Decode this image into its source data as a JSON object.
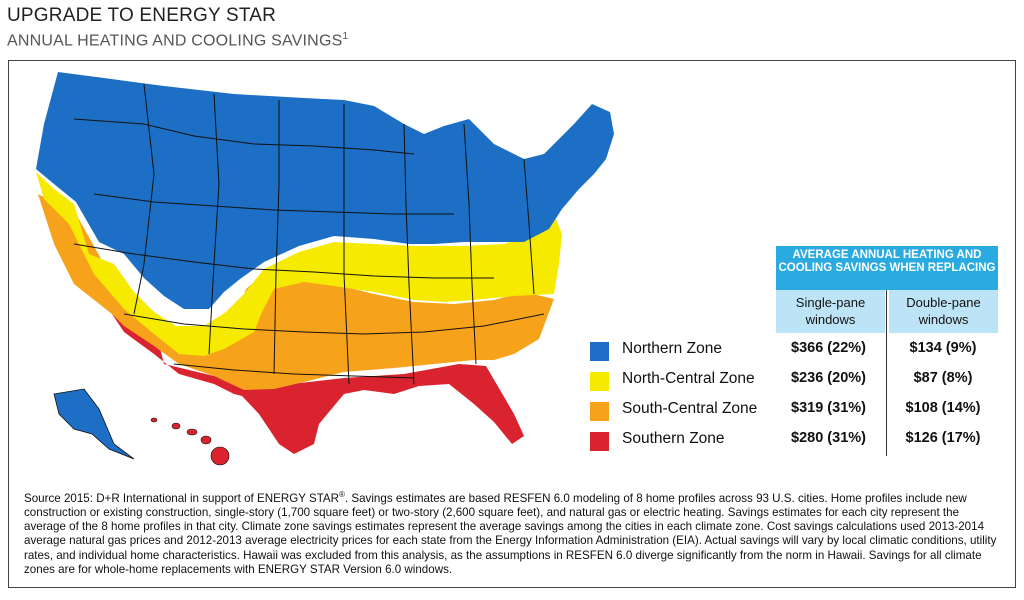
{
  "header": {
    "title": "UPGRADE TO ENERGY STAR",
    "subtitle": "ANNUAL HEATING AND COOLING SAVINGS",
    "subtitle_footnote": "1"
  },
  "table": {
    "heading": "AVERAGE ANNUAL HEATING AND COOLING SAVINGS WHEN REPLACING",
    "col1": "Single-pane windows",
    "col2": "Double-pane windows"
  },
  "zones": [
    {
      "name": "Northern Zone",
      "color": "#1c6fc4",
      "single": "$366 (22%)",
      "double": "$134 (9%)"
    },
    {
      "name": "North-Central Zone",
      "color": "#f5ea00",
      "single": "$236 (20%)",
      "double": "$87 (8%)"
    },
    {
      "name": "South-Central Zone",
      "color": "#f7a21b",
      "single": "$319 (31%)",
      "double": "$108 (14%)"
    },
    {
      "name": "Southern Zone",
      "color": "#d9232e",
      "single": "$280 (31%)",
      "double": "$126 (17%)"
    }
  ],
  "source": {
    "text_a": "Source 2015: D+R International in support of ENERGY STAR",
    "reg": "®",
    "text_b": ". Savings estimates are based RESFEN 6.0 modeling of 8 home profiles across 93 U.S. cities. Home profiles include new construction or existing construction, single-story (1,700 square feet) or two-story (2,600 square feet), and natural gas or electric heating. Savings estimates for each city represent the average of the 8 home profiles in that city. Climate zone savings estimates represent the average savings among the cities in each climate zone. Cost savings calculations used 2013-2014 average natural gas prices and 2012-2013 average electricity prices for each state from the Energy Information Administration (EIA). Actual savings will vary by local climatic conditions, utility rates, and individual home characteristics. Hawaii was excluded from this analysis, as the assumptions in RESFEN 6.0 diverge significantly from the norm in Hawaii. Savings for all climate zones are for whole-home replacements with ENERGY STAR Version 6.0 windows."
  }
}
